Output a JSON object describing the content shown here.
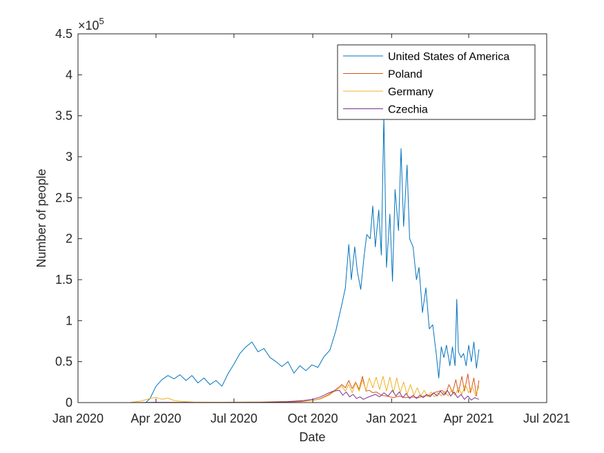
{
  "chart_data": {
    "type": "line",
    "xlabel": "Date",
    "ylabel": "Number of people",
    "exponent_label": "×10",
    "exponent_power": "5",
    "x_ticks": [
      "Jan 2020",
      "Apr 2020",
      "Jul 2020",
      "Oct 2020",
      "Jan 2021",
      "Apr 2021",
      "Jul 2021"
    ],
    "y_ticks": [
      "0",
      "0.5",
      "1",
      "1.5",
      "2",
      "2.5",
      "3",
      "3.5",
      "4",
      "4.5"
    ],
    "xlim": [
      "2020-01-01",
      "2021-07-01"
    ],
    "ylim": [
      0,
      450000
    ],
    "legend_position": "top-right",
    "grid": false,
    "series": [
      {
        "name": "United States of America",
        "color": "#0072BD",
        "points": [
          [
            "2020-01-01",
            0
          ],
          [
            "2020-02-15",
            0
          ],
          [
            "2020-03-20",
            0
          ],
          [
            "2020-03-25",
            5000
          ],
          [
            "2020-04-01",
            20000
          ],
          [
            "2020-04-08",
            28000
          ],
          [
            "2020-04-15",
            33000
          ],
          [
            "2020-04-22",
            29000
          ],
          [
            "2020-04-29",
            34000
          ],
          [
            "2020-05-06",
            27000
          ],
          [
            "2020-05-13",
            33000
          ],
          [
            "2020-05-20",
            24000
          ],
          [
            "2020-05-27",
            30000
          ],
          [
            "2020-06-03",
            22000
          ],
          [
            "2020-06-10",
            27000
          ],
          [
            "2020-06-17",
            20000
          ],
          [
            "2020-06-24",
            35000
          ],
          [
            "2020-07-01",
            47000
          ],
          [
            "2020-07-08",
            60000
          ],
          [
            "2020-07-15",
            68000
          ],
          [
            "2020-07-22",
            74000
          ],
          [
            "2020-07-29",
            62000
          ],
          [
            "2020-08-05",
            66000
          ],
          [
            "2020-08-12",
            55000
          ],
          [
            "2020-08-19",
            50000
          ],
          [
            "2020-08-26",
            44000
          ],
          [
            "2020-09-02",
            50000
          ],
          [
            "2020-09-09",
            36000
          ],
          [
            "2020-09-16",
            45000
          ],
          [
            "2020-09-23",
            39000
          ],
          [
            "2020-09-30",
            46000
          ],
          [
            "2020-10-07",
            43000
          ],
          [
            "2020-10-14",
            56000
          ],
          [
            "2020-10-21",
            64000
          ],
          [
            "2020-10-28",
            88000
          ],
          [
            "2020-11-04",
            120000
          ],
          [
            "2020-11-08",
            140000
          ],
          [
            "2020-11-12",
            193000
          ],
          [
            "2020-11-15",
            150000
          ],
          [
            "2020-11-19",
            190000
          ],
          [
            "2020-11-22",
            160000
          ],
          [
            "2020-11-26",
            138000
          ],
          [
            "2020-11-30",
            180000
          ],
          [
            "2020-12-03",
            205000
          ],
          [
            "2020-12-07",
            200000
          ],
          [
            "2020-12-10",
            240000
          ],
          [
            "2020-12-13",
            190000
          ],
          [
            "2020-12-17",
            235000
          ],
          [
            "2020-12-20",
            180000
          ],
          [
            "2020-12-23",
            350000
          ],
          [
            "2020-12-26",
            165000
          ],
          [
            "2020-12-30",
            230000
          ],
          [
            "2021-01-02",
            148000
          ],
          [
            "2021-01-05",
            260000
          ],
          [
            "2021-01-09",
            210000
          ],
          [
            "2021-01-12",
            310000
          ],
          [
            "2021-01-15",
            215000
          ],
          [
            "2021-01-19",
            290000
          ],
          [
            "2021-01-22",
            200000
          ],
          [
            "2021-01-26",
            190000
          ],
          [
            "2021-01-30",
            150000
          ],
          [
            "2021-02-02",
            165000
          ],
          [
            "2021-02-06",
            110000
          ],
          [
            "2021-02-10",
            140000
          ],
          [
            "2021-02-14",
            90000
          ],
          [
            "2021-02-18",
            95000
          ],
          [
            "2021-02-22",
            60000
          ],
          [
            "2021-02-25",
            30000
          ],
          [
            "2021-02-28",
            68000
          ],
          [
            "2021-03-03",
            55000
          ],
          [
            "2021-03-06",
            70000
          ],
          [
            "2021-03-10",
            45000
          ],
          [
            "2021-03-13",
            68000
          ],
          [
            "2021-03-16",
            45000
          ],
          [
            "2021-03-18",
            126000
          ],
          [
            "2021-03-20",
            62000
          ],
          [
            "2021-03-23",
            55000
          ],
          [
            "2021-03-26",
            60000
          ],
          [
            "2021-03-29",
            45000
          ],
          [
            "2021-04-01",
            70000
          ],
          [
            "2021-04-04",
            50000
          ],
          [
            "2021-04-07",
            74000
          ],
          [
            "2021-04-10",
            42000
          ],
          [
            "2021-04-13",
            65000
          ]
        ]
      },
      {
        "name": "Poland",
        "color": "#D95319",
        "points": [
          [
            "2020-01-01",
            0
          ],
          [
            "2020-03-15",
            0
          ],
          [
            "2020-04-15",
            200
          ],
          [
            "2020-06-15",
            400
          ],
          [
            "2020-08-15",
            600
          ],
          [
            "2020-09-15",
            1000
          ],
          [
            "2020-10-01",
            2500
          ],
          [
            "2020-10-10",
            5000
          ],
          [
            "2020-10-20",
            10000
          ],
          [
            "2020-10-28",
            16000
          ],
          [
            "2020-11-04",
            22000
          ],
          [
            "2020-11-08",
            18000
          ],
          [
            "2020-11-12",
            27000
          ],
          [
            "2020-11-16",
            17000
          ],
          [
            "2020-11-20",
            25000
          ],
          [
            "2020-11-24",
            16000
          ],
          [
            "2020-11-28",
            32000
          ],
          [
            "2020-12-02",
            14000
          ],
          [
            "2020-12-06",
            15000
          ],
          [
            "2020-12-10",
            12000
          ],
          [
            "2020-12-14",
            13000
          ],
          [
            "2020-12-20",
            9000
          ],
          [
            "2020-12-26",
            8000
          ],
          [
            "2021-01-03",
            6000
          ],
          [
            "2021-01-10",
            8000
          ],
          [
            "2021-01-17",
            6000
          ],
          [
            "2021-01-24",
            7000
          ],
          [
            "2021-02-01",
            6000
          ],
          [
            "2021-02-08",
            8000
          ],
          [
            "2021-02-15",
            9000
          ],
          [
            "2021-02-22",
            13000
          ],
          [
            "2021-03-01",
            15000
          ],
          [
            "2021-03-05",
            10000
          ],
          [
            "2021-03-09",
            22000
          ],
          [
            "2021-03-13",
            12000
          ],
          [
            "2021-03-17",
            28000
          ],
          [
            "2021-03-20",
            12000
          ],
          [
            "2021-03-24",
            32000
          ],
          [
            "2021-03-27",
            14000
          ],
          [
            "2021-03-31",
            35000
          ],
          [
            "2021-04-03",
            12000
          ],
          [
            "2021-04-07",
            30000
          ],
          [
            "2021-04-10",
            8000
          ],
          [
            "2021-04-13",
            27000
          ]
        ]
      },
      {
        "name": "Germany",
        "color": "#EDB120",
        "points": [
          [
            "2020-01-01",
            0
          ],
          [
            "2020-03-01",
            0
          ],
          [
            "2020-03-15",
            2000
          ],
          [
            "2020-03-25",
            5000
          ],
          [
            "2020-04-01",
            6500
          ],
          [
            "2020-04-08",
            4000
          ],
          [
            "2020-04-15",
            5500
          ],
          [
            "2020-04-22",
            2500
          ],
          [
            "2020-05-01",
            1500
          ],
          [
            "2020-05-15",
            700
          ],
          [
            "2020-06-15",
            400
          ],
          [
            "2020-08-01",
            800
          ],
          [
            "2020-09-01",
            1500
          ],
          [
            "2020-10-01",
            2500
          ],
          [
            "2020-10-10",
            4500
          ],
          [
            "2020-10-20",
            9000
          ],
          [
            "2020-10-28",
            15000
          ],
          [
            "2020-11-04",
            20000
          ],
          [
            "2020-11-08",
            14000
          ],
          [
            "2020-11-12",
            22000
          ],
          [
            "2020-11-16",
            12000
          ],
          [
            "2020-11-20",
            24000
          ],
          [
            "2020-11-24",
            14000
          ],
          [
            "2020-11-28",
            28000
          ],
          [
            "2020-12-02",
            15000
          ],
          [
            "2020-12-06",
            30000
          ],
          [
            "2020-12-10",
            18000
          ],
          [
            "2020-12-14",
            31000
          ],
          [
            "2020-12-18",
            16000
          ],
          [
            "2020-12-22",
            32000
          ],
          [
            "2020-12-26",
            14000
          ],
          [
            "2020-12-30",
            31000
          ],
          [
            "2021-01-03",
            12000
          ],
          [
            "2021-01-07",
            30000
          ],
          [
            "2021-01-11",
            12000
          ],
          [
            "2021-01-15",
            25000
          ],
          [
            "2021-01-19",
            10000
          ],
          [
            "2021-01-23",
            22000
          ],
          [
            "2021-01-27",
            9000
          ],
          [
            "2021-01-31",
            18000
          ],
          [
            "2021-02-04",
            8000
          ],
          [
            "2021-02-08",
            15000
          ],
          [
            "2021-02-12",
            7000
          ],
          [
            "2021-02-16",
            13000
          ],
          [
            "2021-02-20",
            7000
          ],
          [
            "2021-02-24",
            12000
          ],
          [
            "2021-02-28",
            8000
          ],
          [
            "2021-03-04",
            14000
          ],
          [
            "2021-03-08",
            8000
          ],
          [
            "2021-03-12",
            16000
          ],
          [
            "2021-03-16",
            9000
          ],
          [
            "2021-03-20",
            18000
          ],
          [
            "2021-03-24",
            10000
          ],
          [
            "2021-03-28",
            22000
          ],
          [
            "2021-04-01",
            12000
          ],
          [
            "2021-04-05",
            20000
          ],
          [
            "2021-04-09",
            8000
          ],
          [
            "2021-04-13",
            20000
          ]
        ]
      },
      {
        "name": "Czechia",
        "color": "#7E2F8E",
        "points": [
          [
            "2020-01-01",
            0
          ],
          [
            "2020-03-01",
            0
          ],
          [
            "2020-04-01",
            300
          ],
          [
            "2020-06-01",
            100
          ],
          [
            "2020-08-01",
            300
          ],
          [
            "2020-09-01",
            1000
          ],
          [
            "2020-09-20",
            2500
          ],
          [
            "2020-10-01",
            4000
          ],
          [
            "2020-10-10",
            7000
          ],
          [
            "2020-10-18",
            11000
          ],
          [
            "2020-10-25",
            14000
          ],
          [
            "2020-11-01",
            15000
          ],
          [
            "2020-11-05",
            9000
          ],
          [
            "2020-11-09",
            13000
          ],
          [
            "2020-11-13",
            7000
          ],
          [
            "2020-11-17",
            10000
          ],
          [
            "2020-11-21",
            5000
          ],
          [
            "2020-11-25",
            7000
          ],
          [
            "2020-11-29",
            4000
          ],
          [
            "2020-12-03",
            6000
          ],
          [
            "2020-12-08",
            8000
          ],
          [
            "2020-12-13",
            10000
          ],
          [
            "2020-12-18",
            7000
          ],
          [
            "2020-12-23",
            12000
          ],
          [
            "2020-12-28",
            8000
          ],
          [
            "2021-01-02",
            15000
          ],
          [
            "2021-01-06",
            8000
          ],
          [
            "2021-01-10",
            13000
          ],
          [
            "2021-01-14",
            6000
          ],
          [
            "2021-01-18",
            11000
          ],
          [
            "2021-01-22",
            5000
          ],
          [
            "2021-01-26",
            9000
          ],
          [
            "2021-01-30",
            5000
          ],
          [
            "2021-02-03",
            9000
          ],
          [
            "2021-02-07",
            6000
          ],
          [
            "2021-02-11",
            10000
          ],
          [
            "2021-02-15",
            7000
          ],
          [
            "2021-02-19",
            12000
          ],
          [
            "2021-02-23",
            8000
          ],
          [
            "2021-02-27",
            14000
          ],
          [
            "2021-03-03",
            9000
          ],
          [
            "2021-03-07",
            15000
          ],
          [
            "2021-03-11",
            8000
          ],
          [
            "2021-03-15",
            13000
          ],
          [
            "2021-03-19",
            6000
          ],
          [
            "2021-03-23",
            10000
          ],
          [
            "2021-03-27",
            4000
          ],
          [
            "2021-03-31",
            8000
          ],
          [
            "2021-04-04",
            3000
          ],
          [
            "2021-04-08",
            6000
          ],
          [
            "2021-04-13",
            4000
          ]
        ]
      }
    ]
  }
}
